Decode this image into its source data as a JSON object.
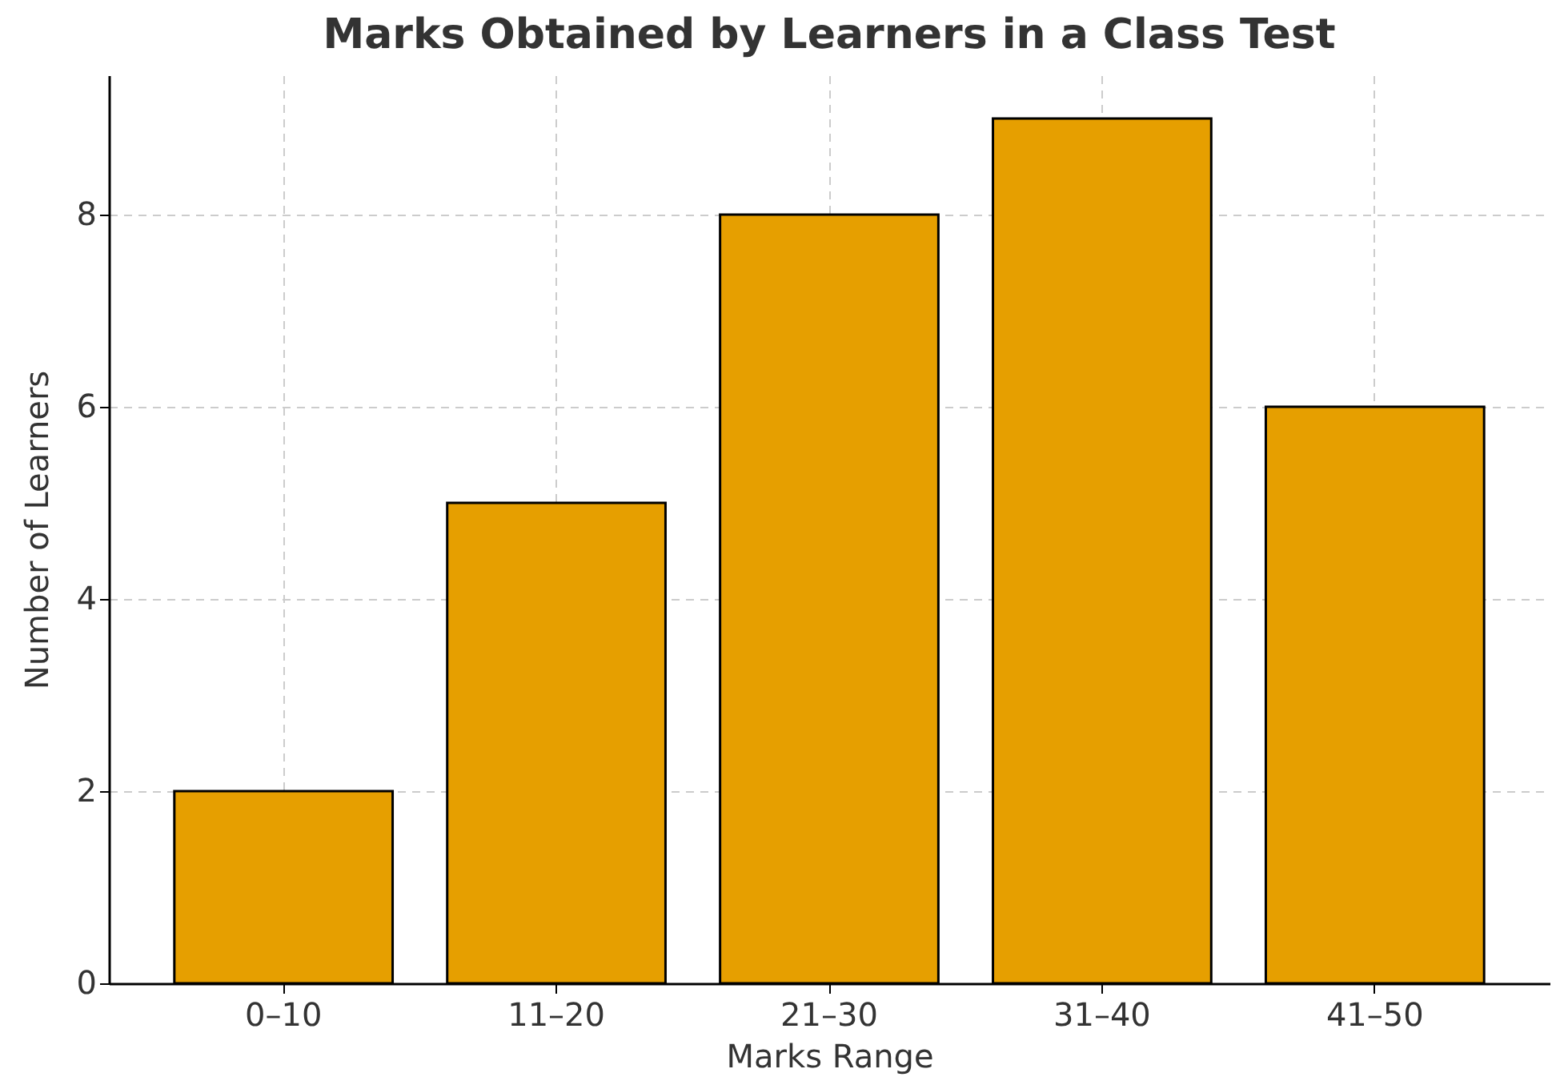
{
  "chart_data": {
    "type": "bar",
    "title": "Marks Obtained by Learners in a Class Test",
    "xlabel": "Marks Range",
    "ylabel": "Number of Learners",
    "categories": [
      "0–10",
      "11–20",
      "21–30",
      "31–40",
      "41–50"
    ],
    "values": [
      2,
      5,
      8,
      9,
      6
    ],
    "color": "#e69f00",
    "ylim": [
      0,
      9.45
    ],
    "yticks": [
      0,
      2,
      4,
      6,
      8
    ],
    "grid": true
  }
}
